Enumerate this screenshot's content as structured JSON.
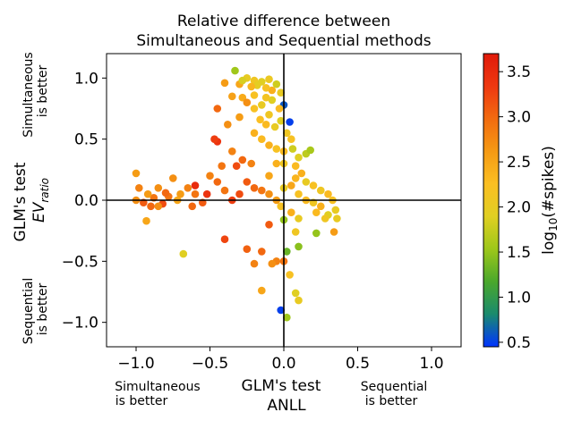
{
  "chart_data": {
    "type": "scatter",
    "title_line1": "Relative difference between",
    "title_line2": "Simultaneous and Sequential methods",
    "xlabel_line1": "GLM's test",
    "xlabel_line2": "ANLL",
    "ylabel_line1": "GLM's test",
    "ylabel_line2_main": "EV",
    "ylabel_line2_sub": "ratio",
    "x_left_note_line1": "Simultaneous",
    "x_left_note_line2": "is better",
    "x_right_note_line1": "Sequential",
    "x_right_note_line2": "is better",
    "y_top_note_line1": "Simultaneous",
    "y_top_note_line2": "is better",
    "y_bottom_note_line1": "Sequential",
    "y_bottom_note_line2": "is better",
    "xlim": [
      -1.2,
      1.2
    ],
    "ylim": [
      -1.2,
      1.2
    ],
    "xticks": [
      -1.0,
      -0.5,
      0.0,
      0.5,
      1.0
    ],
    "xtick_labels": [
      "−1.0",
      "−0.5",
      "0.0",
      "0.5",
      "1.0"
    ],
    "yticks": [
      -1.0,
      -0.5,
      0.0,
      0.5,
      1.0
    ],
    "ytick_labels": [
      "−1.0",
      "−0.5",
      "0.0",
      "0.5",
      "1.0"
    ],
    "colorbar": {
      "label_prefix": "log",
      "label_sub": "10",
      "label_suffix": "(#spikes)",
      "range": [
        0.45,
        3.7
      ],
      "ticks": [
        0.5,
        1.0,
        1.5,
        2.0,
        2.5,
        3.0,
        3.5
      ],
      "tick_labels": [
        "0.5",
        "1.0",
        "1.5",
        "2.0",
        "2.5",
        "3.0",
        "3.5"
      ],
      "colormap": [
        "#0033ff",
        "#1a8a6e",
        "#4aa82c",
        "#9dc71a",
        "#e0cf22",
        "#fbbf22",
        "#f59a14",
        "#f26b10",
        "#ee3810",
        "#e01a0a"
      ]
    },
    "reference_lines": {
      "x": 0,
      "y": 0
    },
    "grid": false,
    "points": [
      {
        "x": -0.33,
        "y": 1.06,
        "c": 1.55
      },
      {
        "x": -0.25,
        "y": 1.0,
        "c": 2.0
      },
      {
        "x": -0.2,
        "y": 0.98,
        "c": 2.1
      },
      {
        "x": -0.15,
        "y": 0.97,
        "c": 1.9
      },
      {
        "x": -0.1,
        "y": 0.99,
        "c": 2.05
      },
      {
        "x": -0.05,
        "y": 0.95,
        "c": 1.8
      },
      {
        "x": 0.0,
        "y": 0.78,
        "c": 0.6
      },
      {
        "x": 0.04,
        "y": 0.64,
        "c": 0.5
      },
      {
        "x": -0.03,
        "y": 0.75,
        "c": 2.3
      },
      {
        "x": -0.08,
        "y": 0.9,
        "c": 2.4
      },
      {
        "x": -0.12,
        "y": 0.92,
        "c": 2.2
      },
      {
        "x": -0.18,
        "y": 0.94,
        "c": 1.95
      },
      {
        "x": -0.22,
        "y": 0.93,
        "c": 2.35
      },
      {
        "x": -0.3,
        "y": 0.95,
        "c": 2.5
      },
      {
        "x": -0.4,
        "y": 0.96,
        "c": 2.6
      },
      {
        "x": -0.35,
        "y": 0.85,
        "c": 2.55
      },
      {
        "x": -0.28,
        "y": 0.84,
        "c": 2.45
      },
      {
        "x": -0.25,
        "y": 0.8,
        "c": 2.7
      },
      {
        "x": -0.2,
        "y": 0.75,
        "c": 2.2
      },
      {
        "x": -0.15,
        "y": 0.78,
        "c": 2.0
      },
      {
        "x": -0.1,
        "y": 0.7,
        "c": 2.1
      },
      {
        "x": -0.12,
        "y": 0.62,
        "c": 2.3
      },
      {
        "x": -0.06,
        "y": 0.6,
        "c": 2.0
      },
      {
        "x": -0.02,
        "y": 0.65,
        "c": 1.9
      },
      {
        "x": 0.02,
        "y": 0.55,
        "c": 2.1
      },
      {
        "x": 0.05,
        "y": 0.5,
        "c": 2.2
      },
      {
        "x": 0.06,
        "y": 0.42,
        "c": 1.8
      },
      {
        "x": 0.1,
        "y": 0.35,
        "c": 1.9
      },
      {
        "x": 0.15,
        "y": 0.38,
        "c": 1.7
      },
      {
        "x": 0.18,
        "y": 0.41,
        "c": 1.6
      },
      {
        "x": 0.08,
        "y": 0.28,
        "c": 2.3
      },
      {
        "x": 0.12,
        "y": 0.22,
        "c": 2.4
      },
      {
        "x": 0.15,
        "y": 0.15,
        "c": 2.0
      },
      {
        "x": 0.2,
        "y": 0.12,
        "c": 2.2
      },
      {
        "x": 0.25,
        "y": 0.08,
        "c": 2.1
      },
      {
        "x": 0.3,
        "y": 0.05,
        "c": 2.3
      },
      {
        "x": 0.33,
        "y": 0.0,
        "c": 2.2
      },
      {
        "x": 0.35,
        "y": -0.08,
        "c": 2.0
      },
      {
        "x": 0.3,
        "y": -0.12,
        "c": 1.9
      },
      {
        "x": 0.25,
        "y": -0.05,
        "c": 2.4
      },
      {
        "x": 0.22,
        "y": -0.1,
        "c": 2.3
      },
      {
        "x": 0.28,
        "y": -0.15,
        "c": 2.1
      },
      {
        "x": 0.36,
        "y": -0.15,
        "c": 2.0
      },
      {
        "x": 0.34,
        "y": -0.26,
        "c": 2.6
      },
      {
        "x": 0.22,
        "y": -0.27,
        "c": 1.5
      },
      {
        "x": 0.1,
        "y": -0.38,
        "c": 1.45
      },
      {
        "x": 0.08,
        "y": -0.26,
        "c": 2.1
      },
      {
        "x": 0.02,
        "y": -0.42,
        "c": 1.3
      },
      {
        "x": 0.04,
        "y": -0.61,
        "c": 2.2
      },
      {
        "x": 0.08,
        "y": -0.76,
        "c": 1.9
      },
      {
        "x": 0.1,
        "y": -0.82,
        "c": 2.0
      },
      {
        "x": 0.02,
        "y": -0.96,
        "c": 1.55
      },
      {
        "x": -0.02,
        "y": -0.9,
        "c": 0.5
      },
      {
        "x": -0.15,
        "y": -0.74,
        "c": 2.5
      },
      {
        "x": -0.2,
        "y": -0.52,
        "c": 2.8
      },
      {
        "x": -0.15,
        "y": -0.42,
        "c": 3.0
      },
      {
        "x": -0.25,
        "y": -0.4,
        "c": 3.05
      },
      {
        "x": -0.4,
        "y": -0.32,
        "c": 3.25
      },
      {
        "x": -0.68,
        "y": -0.44,
        "c": 1.9
      },
      {
        "x": -0.1,
        "y": -0.2,
        "c": 3.1
      },
      {
        "x": -0.05,
        "y": -0.5,
        "c": 2.8
      },
      {
        "x": -0.08,
        "y": -0.52,
        "c": 2.7
      },
      {
        "x": 0.0,
        "y": -0.5,
        "c": 2.9
      },
      {
        "x": 0.0,
        "y": -0.16,
        "c": 1.5
      },
      {
        "x": -0.02,
        "y": -0.05,
        "c": 2.2
      },
      {
        "x": -0.05,
        "y": 0.0,
        "c": 2.6
      },
      {
        "x": -0.1,
        "y": 0.05,
        "c": 2.7
      },
      {
        "x": -0.15,
        "y": 0.08,
        "c": 2.9
      },
      {
        "x": -0.2,
        "y": 0.1,
        "c": 3.0
      },
      {
        "x": -0.22,
        "y": 0.3,
        "c": 2.8
      },
      {
        "x": -0.28,
        "y": 0.33,
        "c": 3.0
      },
      {
        "x": -0.32,
        "y": 0.28,
        "c": 3.2
      },
      {
        "x": -0.42,
        "y": 0.28,
        "c": 2.9
      },
      {
        "x": -0.45,
        "y": 0.48,
        "c": 3.4
      },
      {
        "x": -0.47,
        "y": 0.5,
        "c": 3.3
      },
      {
        "x": -0.38,
        "y": 0.62,
        "c": 2.7
      },
      {
        "x": -0.3,
        "y": 0.68,
        "c": 2.6
      },
      {
        "x": -0.45,
        "y": 0.75,
        "c": 3.0
      },
      {
        "x": -0.35,
        "y": 0.4,
        "c": 2.8
      },
      {
        "x": -0.25,
        "y": 0.15,
        "c": 3.1
      },
      {
        "x": -0.3,
        "y": 0.05,
        "c": 3.2
      },
      {
        "x": -0.35,
        "y": 0.0,
        "c": 3.3
      },
      {
        "x": -0.4,
        "y": 0.08,
        "c": 2.9
      },
      {
        "x": -0.45,
        "y": 0.15,
        "c": 3.0
      },
      {
        "x": -0.5,
        "y": 0.2,
        "c": 2.8
      },
      {
        "x": -0.52,
        "y": 0.05,
        "c": 3.4
      },
      {
        "x": -0.55,
        "y": -0.02,
        "c": 3.1
      },
      {
        "x": -0.6,
        "y": 0.05,
        "c": 2.9
      },
      {
        "x": -0.62,
        "y": -0.05,
        "c": 3.0
      },
      {
        "x": -0.65,
        "y": 0.1,
        "c": 2.8
      },
      {
        "x": -0.7,
        "y": 0.05,
        "c": 2.6
      },
      {
        "x": -0.72,
        "y": 0.0,
        "c": 2.5
      },
      {
        "x": -0.75,
        "y": 0.18,
        "c": 2.7
      },
      {
        "x": -0.78,
        "y": 0.03,
        "c": 2.9
      },
      {
        "x": -0.8,
        "y": 0.06,
        "c": 3.0
      },
      {
        "x": -0.82,
        "y": -0.03,
        "c": 3.2
      },
      {
        "x": -0.85,
        "y": 0.1,
        "c": 2.7
      },
      {
        "x": -0.88,
        "y": 0.02,
        "c": 2.9
      },
      {
        "x": -0.9,
        "y": -0.05,
        "c": 3.0
      },
      {
        "x": -0.92,
        "y": 0.05,
        "c": 2.6
      },
      {
        "x": -0.95,
        "y": -0.02,
        "c": 3.1
      },
      {
        "x": -0.98,
        "y": 0.1,
        "c": 2.8
      },
      {
        "x": -1.0,
        "y": 0.0,
        "c": 2.7
      },
      {
        "x": -1.0,
        "y": 0.22,
        "c": 2.6
      },
      {
        "x": -0.93,
        "y": -0.17,
        "c": 2.5
      },
      {
        "x": -0.85,
        "y": -0.05,
        "c": 2.7
      },
      {
        "x": -0.6,
        "y": 0.12,
        "c": 3.5
      },
      {
        "x": -0.1,
        "y": 0.2,
        "c": 2.5
      },
      {
        "x": -0.05,
        "y": 0.3,
        "c": 2.4
      },
      {
        "x": 0.0,
        "y": 0.4,
        "c": 2.3
      },
      {
        "x": 0.05,
        "y": 0.12,
        "c": 2.5
      },
      {
        "x": 0.0,
        "y": 0.1,
        "c": 2.0
      },
      {
        "x": 0.1,
        "y": 0.05,
        "c": 2.2
      },
      {
        "x": 0.15,
        "y": 0.0,
        "c": 2.3
      },
      {
        "x": 0.2,
        "y": -0.02,
        "c": 2.1
      },
      {
        "x": 0.05,
        "y": -0.1,
        "c": 2.4
      },
      {
        "x": 0.1,
        "y": -0.15,
        "c": 2.0
      },
      {
        "x": -0.2,
        "y": 0.55,
        "c": 2.4
      },
      {
        "x": -0.15,
        "y": 0.5,
        "c": 2.3
      },
      {
        "x": -0.1,
        "y": 0.45,
        "c": 2.4
      },
      {
        "x": -0.05,
        "y": 0.42,
        "c": 2.2
      },
      {
        "x": 0.0,
        "y": 0.3,
        "c": 2.1
      },
      {
        "x": -0.08,
        "y": 0.82,
        "c": 1.9
      },
      {
        "x": -0.2,
        "y": 0.86,
        "c": 2.2
      },
      {
        "x": -0.02,
        "y": 0.88,
        "c": 2.0
      },
      {
        "x": -0.28,
        "y": 0.98,
        "c": 1.85
      },
      {
        "x": -0.12,
        "y": 0.84,
        "c": 2.15
      },
      {
        "x": -0.16,
        "y": 0.66,
        "c": 2.25
      },
      {
        "x": 0.08,
        "y": 0.18,
        "c": 2.35
      }
    ]
  }
}
